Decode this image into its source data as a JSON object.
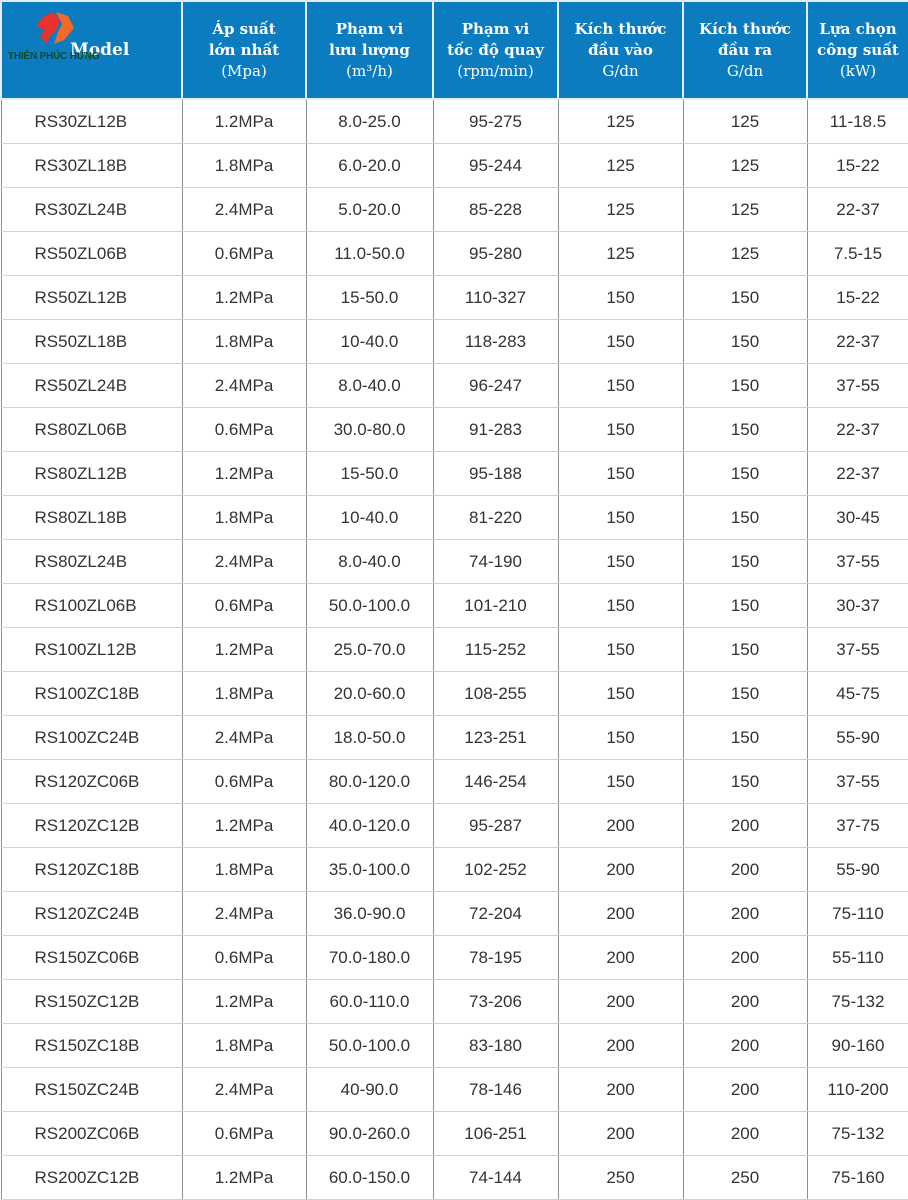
{
  "logo": {
    "text": "THIÊN PHÚC HƯNG"
  },
  "headers": [
    {
      "lines": [
        "Model"
      ],
      "unit": ""
    },
    {
      "lines": [
        "Áp suất",
        "lớn nhất"
      ],
      "unit": "(Mpa)"
    },
    {
      "lines": [
        "Phạm vi",
        "lưu lượng"
      ],
      "unit": "(m³/h)"
    },
    {
      "lines": [
        "Phạm vi",
        "tốc độ quay"
      ],
      "unit": "(rpm/min)"
    },
    {
      "lines": [
        "Kích thước",
        "đầu vào"
      ],
      "unit": "G/dn"
    },
    {
      "lines": [
        "Kích thước",
        "đầu ra"
      ],
      "unit": "G/dn"
    },
    {
      "lines": [
        "Lựa chọn",
        "công suất"
      ],
      "unit": "(kW)"
    }
  ],
  "rows": [
    [
      "RS30ZL12B",
      "1.2MPa",
      "8.0-25.0",
      "95-275",
      "125",
      "125",
      "11-18.5"
    ],
    [
      "RS30ZL18B",
      "1.8MPa",
      "6.0-20.0",
      "95-244",
      "125",
      "125",
      "15-22"
    ],
    [
      "RS30ZL24B",
      "2.4MPa",
      "5.0-20.0",
      "85-228",
      "125",
      "125",
      "22-37"
    ],
    [
      "RS50ZL06B",
      "0.6MPa",
      "11.0-50.0",
      "95-280",
      "125",
      "125",
      "7.5-15"
    ],
    [
      "RS50ZL12B",
      "1.2MPa",
      "15-50.0",
      "110-327",
      "150",
      "150",
      "15-22"
    ],
    [
      "RS50ZL18B",
      "1.8MPa",
      "10-40.0",
      "118-283",
      "150",
      "150",
      "22-37"
    ],
    [
      "RS50ZL24B",
      "2.4MPa",
      "8.0-40.0",
      "96-247",
      "150",
      "150",
      "37-55"
    ],
    [
      "RS80ZL06B",
      "0.6MPa",
      "30.0-80.0",
      "91-283",
      "150",
      "150",
      "22-37"
    ],
    [
      "RS80ZL12B",
      "1.2MPa",
      "15-50.0",
      "95-188",
      "150",
      "150",
      "22-37"
    ],
    [
      "RS80ZL18B",
      "1.8MPa",
      "10-40.0",
      "81-220",
      "150",
      "150",
      "30-45"
    ],
    [
      "RS80ZL24B",
      "2.4MPa",
      "8.0-40.0",
      "74-190",
      "150",
      "150",
      "37-55"
    ],
    [
      "RS100ZL06B",
      "0.6MPa",
      "50.0-100.0",
      "101-210",
      "150",
      "150",
      "30-37"
    ],
    [
      "RS100ZL12B",
      "1.2MPa",
      "25.0-70.0",
      "115-252",
      "150",
      "150",
      "37-55"
    ],
    [
      "RS100ZC18B",
      "1.8MPa",
      "20.0-60.0",
      "108-255",
      "150",
      "150",
      "45-75"
    ],
    [
      "RS100ZC24B",
      "2.4MPa",
      "18.0-50.0",
      "123-251",
      "150",
      "150",
      "55-90"
    ],
    [
      "RS120ZC06B",
      "0.6MPa",
      "80.0-120.0",
      "146-254",
      "150",
      "150",
      "37-55"
    ],
    [
      "RS120ZC12B",
      "1.2MPa",
      "40.0-120.0",
      "95-287",
      "200",
      "200",
      "37-75"
    ],
    [
      "RS120ZC18B",
      "1.8MPa",
      "35.0-100.0",
      "102-252",
      "200",
      "200",
      "55-90"
    ],
    [
      "RS120ZC24B",
      "2.4MPa",
      "36.0-90.0",
      "72-204",
      "200",
      "200",
      "75-110"
    ],
    [
      "RS150ZC06B",
      "0.6MPa",
      "70.0-180.0",
      "78-195",
      "200",
      "200",
      "55-110"
    ],
    [
      "RS150ZC12B",
      "1.2MPa",
      "60.0-110.0",
      "73-206",
      "200",
      "200",
      "75-132"
    ],
    [
      "RS150ZC18B",
      "1.8MPa",
      "50.0-100.0",
      "83-180",
      "200",
      "200",
      "90-160"
    ],
    [
      "RS150ZC24B",
      "2.4MPa",
      "40-90.0",
      "78-146",
      "200",
      "200",
      "110-200"
    ],
    [
      "RS200ZC06B",
      "0.6MPa",
      "90.0-260.0",
      "106-251",
      "200",
      "200",
      "75-132"
    ],
    [
      "RS200ZC12B",
      "1.2MPa",
      "60.0-150.0",
      "74-144",
      "250",
      "250",
      "75-160"
    ]
  ],
  "colors": {
    "header_bg": "#0c7cc1",
    "logo_red": "#e8322b",
    "logo_orange": "#f06a2a"
  }
}
